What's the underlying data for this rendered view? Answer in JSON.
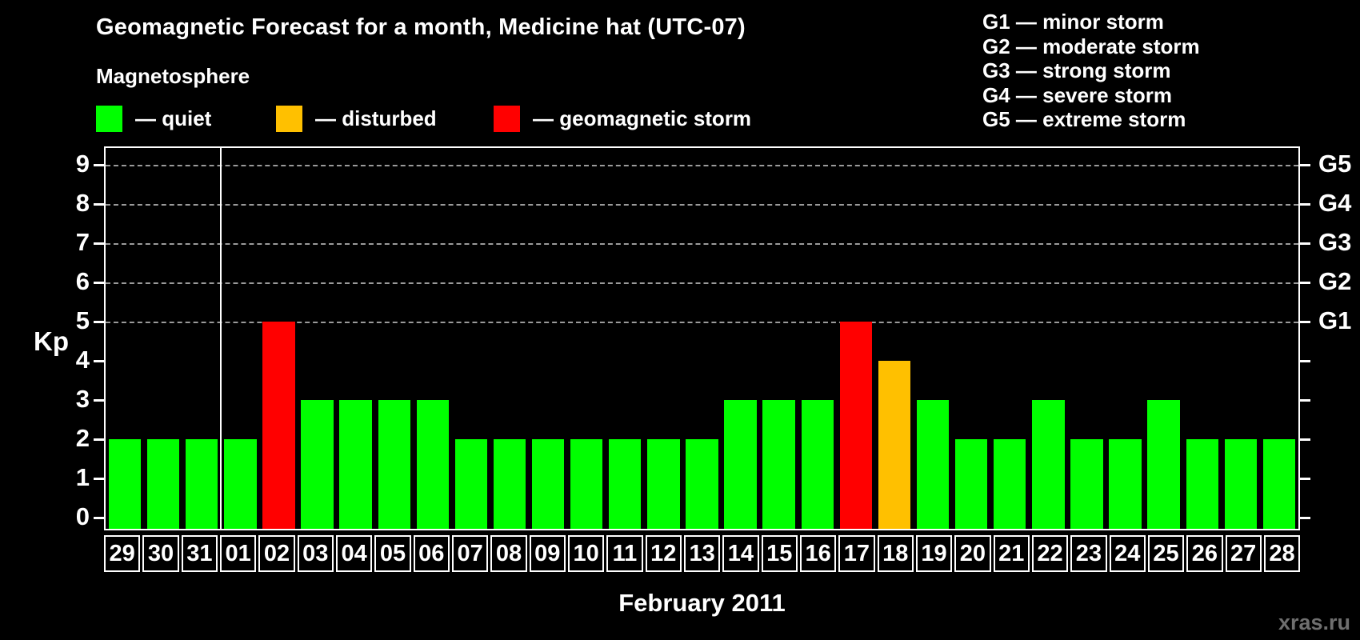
{
  "header": {
    "title": "Geomagnetic Forecast for a month, Medicine hat (UTC-07)"
  },
  "magnetosphere_legend": {
    "title": "Magnetosphere",
    "items": [
      {
        "label": "— quiet",
        "status": "quiet",
        "color": "#00ff00"
      },
      {
        "label": "— disturbed",
        "status": "disturbed",
        "color": "#ffc000"
      },
      {
        "label": "— geomagnetic storm",
        "status": "storm",
        "color": "#ff0000"
      }
    ]
  },
  "g_legend": {
    "items": [
      {
        "text": "G1 — minor storm"
      },
      {
        "text": "G2 — moderate storm"
      },
      {
        "text": "G3 — strong storm"
      },
      {
        "text": "G4 — severe storm"
      },
      {
        "text": "G5 — extreme storm"
      }
    ]
  },
  "footer": {
    "watermark": "xras.ru"
  },
  "chart_data": {
    "type": "bar",
    "title": "Geomagnetic Forecast for a month, Medicine hat (UTC-07)",
    "xlabel": "February 2011",
    "ylabel": "Kp",
    "ylim": [
      0,
      9.4
    ],
    "yticks": [
      0,
      1,
      2,
      3,
      4,
      5,
      6,
      7,
      8,
      9
    ],
    "grid_levels": [
      5,
      6,
      7,
      8,
      9
    ],
    "grid_on": true,
    "right_axis": {
      "labels": [
        "G1",
        "G2",
        "G3",
        "G4",
        "G5"
      ],
      "levels": [
        5,
        6,
        7,
        8,
        9
      ]
    },
    "categories": [
      "29",
      "30",
      "31",
      "01",
      "02",
      "03",
      "04",
      "05",
      "06",
      "07",
      "08",
      "09",
      "10",
      "11",
      "12",
      "13",
      "14",
      "15",
      "16",
      "17",
      "18",
      "19",
      "20",
      "21",
      "22",
      "23",
      "24",
      "25",
      "26",
      "27",
      "28"
    ],
    "values": [
      2,
      2,
      2,
      2,
      5,
      3,
      3,
      3,
      3,
      2,
      2,
      2,
      2,
      2,
      2,
      2,
      3,
      3,
      3,
      5,
      4,
      3,
      2,
      2,
      3,
      2,
      2,
      3,
      2,
      2,
      2
    ],
    "statuses": [
      "quiet",
      "quiet",
      "quiet",
      "quiet",
      "storm",
      "quiet",
      "quiet",
      "quiet",
      "quiet",
      "quiet",
      "quiet",
      "quiet",
      "quiet",
      "quiet",
      "quiet",
      "quiet",
      "quiet",
      "quiet",
      "quiet",
      "storm",
      "disturbed",
      "quiet",
      "quiet",
      "quiet",
      "quiet",
      "quiet",
      "quiet",
      "quiet",
      "quiet",
      "quiet",
      "quiet"
    ],
    "colors": {
      "quiet": "#00ff00",
      "disturbed": "#ffc000",
      "storm": "#ff0000"
    },
    "month_separator_after": "31"
  }
}
